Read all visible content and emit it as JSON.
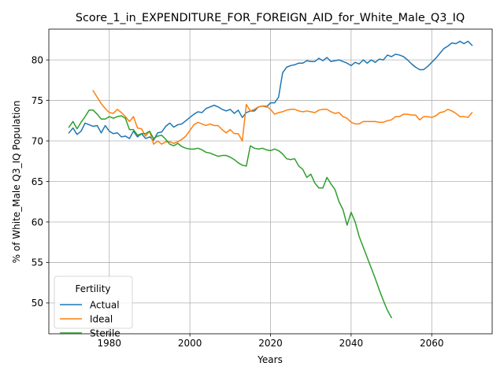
{
  "chart_data": {
    "type": "line",
    "title": "Score_1_in_EXPENDITURE_FOR_FOREIGN_AID_for_White_Male_Q3_IQ",
    "xlabel": "Years",
    "ylabel": "% of White_Male Q3_IQ Population",
    "xlim": [
      1965,
      2075
    ],
    "ylim": [
      46.2,
      83.8
    ],
    "xticks": [
      1980,
      2000,
      2020,
      2040,
      2060
    ],
    "yticks": [
      50,
      55,
      60,
      65,
      70,
      75,
      80
    ],
    "grid": true,
    "legend": {
      "title": "Fertility",
      "position": "lower-left"
    },
    "series": [
      {
        "name": "Actual",
        "color": "#1f77b4",
        "points": [
          [
            1970,
            71.0
          ],
          [
            1971,
            71.6
          ],
          [
            1972,
            70.8
          ],
          [
            1973,
            71.2
          ],
          [
            1974,
            72.2
          ],
          [
            1975,
            72.0
          ],
          [
            1976,
            71.8
          ],
          [
            1977,
            71.9
          ],
          [
            1978,
            71.0
          ],
          [
            1979,
            71.9
          ],
          [
            1980,
            71.2
          ],
          [
            1981,
            70.9
          ],
          [
            1982,
            71.0
          ],
          [
            1983,
            70.5
          ],
          [
            1984,
            70.6
          ],
          [
            1985,
            70.3
          ],
          [
            1986,
            71.2
          ],
          [
            1987,
            70.5
          ],
          [
            1988,
            70.9
          ],
          [
            1989,
            70.3
          ],
          [
            1990,
            70.5
          ],
          [
            1991,
            70.1
          ],
          [
            1992,
            71.0
          ],
          [
            1993,
            71.1
          ],
          [
            1994,
            71.8
          ],
          [
            1995,
            72.2
          ],
          [
            1996,
            71.7
          ],
          [
            1997,
            72.0
          ],
          [
            1998,
            72.1
          ],
          [
            1999,
            72.5
          ],
          [
            2000,
            72.9
          ],
          [
            2001,
            73.3
          ],
          [
            2002,
            73.6
          ],
          [
            2003,
            73.5
          ],
          [
            2004,
            74.0
          ],
          [
            2005,
            74.2
          ],
          [
            2006,
            74.4
          ],
          [
            2007,
            74.2
          ],
          [
            2008,
            73.9
          ],
          [
            2009,
            73.7
          ],
          [
            2010,
            73.9
          ],
          [
            2011,
            73.4
          ],
          [
            2012,
            73.8
          ],
          [
            2013,
            72.9
          ],
          [
            2014,
            73.5
          ],
          [
            2015,
            73.7
          ],
          [
            2016,
            73.7
          ],
          [
            2017,
            74.2
          ],
          [
            2018,
            74.3
          ],
          [
            2019,
            74.2
          ],
          [
            2020,
            74.7
          ],
          [
            2021,
            74.7
          ],
          [
            2022,
            75.4
          ],
          [
            2023,
            78.4
          ],
          [
            2024,
            79.1
          ],
          [
            2025,
            79.3
          ],
          [
            2026,
            79.4
          ],
          [
            2027,
            79.6
          ],
          [
            2028,
            79.6
          ],
          [
            2029,
            79.9
          ],
          [
            2030,
            79.8
          ],
          [
            2031,
            79.8
          ],
          [
            2032,
            80.2
          ],
          [
            2033,
            79.9
          ],
          [
            2034,
            80.3
          ],
          [
            2035,
            79.8
          ],
          [
            2036,
            79.9
          ],
          [
            2037,
            80.0
          ],
          [
            2038,
            79.8
          ],
          [
            2039,
            79.6
          ],
          [
            2040,
            79.3
          ],
          [
            2041,
            79.7
          ],
          [
            2042,
            79.5
          ],
          [
            2043,
            80.0
          ],
          [
            2044,
            79.6
          ],
          [
            2045,
            80.0
          ],
          [
            2046,
            79.7
          ],
          [
            2047,
            80.1
          ],
          [
            2048,
            80.0
          ],
          [
            2049,
            80.6
          ],
          [
            2050,
            80.4
          ],
          [
            2051,
            80.7
          ],
          [
            2052,
            80.6
          ],
          [
            2053,
            80.4
          ],
          [
            2054,
            80.0
          ],
          [
            2055,
            79.5
          ],
          [
            2056,
            79.1
          ],
          [
            2057,
            78.8
          ],
          [
            2058,
            78.8
          ],
          [
            2059,
            79.2
          ],
          [
            2060,
            79.7
          ],
          [
            2061,
            80.2
          ],
          [
            2062,
            80.8
          ],
          [
            2063,
            81.4
          ],
          [
            2064,
            81.7
          ],
          [
            2065,
            82.1
          ],
          [
            2066,
            82.0
          ],
          [
            2067,
            82.3
          ],
          [
            2068,
            82.0
          ],
          [
            2069,
            82.3
          ],
          [
            2070,
            81.8
          ]
        ]
      },
      {
        "name": "Ideal",
        "color": "#ff7f0e",
        "points": [
          [
            1976,
            76.2
          ],
          [
            1977,
            75.4
          ],
          [
            1978,
            74.6
          ],
          [
            1979,
            74.0
          ],
          [
            1980,
            73.5
          ],
          [
            1981,
            73.4
          ],
          [
            1982,
            73.9
          ],
          [
            1983,
            73.5
          ],
          [
            1984,
            73.0
          ],
          [
            1985,
            72.4
          ],
          [
            1986,
            73.0
          ],
          [
            1987,
            71.6
          ],
          [
            1988,
            71.5
          ],
          [
            1989,
            70.6
          ],
          [
            1990,
            71.2
          ],
          [
            1991,
            69.6
          ],
          [
            1992,
            70.0
          ],
          [
            1993,
            69.6
          ],
          [
            1994,
            69.9
          ],
          [
            1995,
            69.9
          ],
          [
            1996,
            69.7
          ],
          [
            1997,
            69.9
          ],
          [
            1998,
            70.2
          ],
          [
            1999,
            70.6
          ],
          [
            2000,
            71.3
          ],
          [
            2001,
            72.0
          ],
          [
            2002,
            72.3
          ],
          [
            2003,
            72.1
          ],
          [
            2004,
            71.9
          ],
          [
            2005,
            72.1
          ],
          [
            2006,
            71.9
          ],
          [
            2007,
            71.9
          ],
          [
            2008,
            71.4
          ],
          [
            2009,
            71.0
          ],
          [
            2010,
            71.4
          ],
          [
            2011,
            70.9
          ],
          [
            2012,
            70.9
          ],
          [
            2013,
            70.0
          ],
          [
            2014,
            74.5
          ],
          [
            2015,
            73.7
          ],
          [
            2016,
            73.9
          ],
          [
            2017,
            74.2
          ],
          [
            2018,
            74.3
          ],
          [
            2019,
            74.3
          ],
          [
            2020,
            73.9
          ],
          [
            2021,
            73.3
          ],
          [
            2022,
            73.5
          ],
          [
            2023,
            73.6
          ],
          [
            2024,
            73.8
          ],
          [
            2025,
            73.9
          ],
          [
            2026,
            73.9
          ],
          [
            2027,
            73.7
          ],
          [
            2028,
            73.6
          ],
          [
            2029,
            73.7
          ],
          [
            2030,
            73.6
          ],
          [
            2031,
            73.5
          ],
          [
            2032,
            73.8
          ],
          [
            2033,
            73.9
          ],
          [
            2034,
            73.9
          ],
          [
            2035,
            73.6
          ],
          [
            2036,
            73.4
          ],
          [
            2037,
            73.5
          ],
          [
            2038,
            73.0
          ],
          [
            2039,
            72.8
          ],
          [
            2040,
            72.3
          ],
          [
            2041,
            72.1
          ],
          [
            2042,
            72.1
          ],
          [
            2043,
            72.4
          ],
          [
            2044,
            72.4
          ],
          [
            2045,
            72.4
          ],
          [
            2046,
            72.4
          ],
          [
            2047,
            72.3
          ],
          [
            2048,
            72.3
          ],
          [
            2049,
            72.5
          ],
          [
            2050,
            72.6
          ],
          [
            2051,
            73.0
          ],
          [
            2052,
            73.0
          ],
          [
            2053,
            73.3
          ],
          [
            2054,
            73.3
          ],
          [
            2055,
            73.2
          ],
          [
            2056,
            73.2
          ],
          [
            2057,
            72.6
          ],
          [
            2058,
            73.0
          ],
          [
            2059,
            73.0
          ],
          [
            2060,
            72.9
          ],
          [
            2061,
            73.1
          ],
          [
            2062,
            73.5
          ],
          [
            2063,
            73.6
          ],
          [
            2064,
            73.9
          ],
          [
            2065,
            73.7
          ],
          [
            2066,
            73.4
          ],
          [
            2067,
            73.0
          ],
          [
            2068,
            73.0
          ],
          [
            2069,
            72.9
          ],
          [
            2070,
            73.5
          ]
        ]
      },
      {
        "name": "Sterile",
        "color": "#2ca02c",
        "points": [
          [
            1970,
            71.7
          ],
          [
            1971,
            72.4
          ],
          [
            1972,
            71.5
          ],
          [
            1973,
            72.3
          ],
          [
            1974,
            73.0
          ],
          [
            1975,
            73.8
          ],
          [
            1976,
            73.8
          ],
          [
            1977,
            73.3
          ],
          [
            1978,
            72.7
          ],
          [
            1979,
            72.7
          ],
          [
            1980,
            73.0
          ],
          [
            1981,
            72.8
          ],
          [
            1982,
            73.0
          ],
          [
            1983,
            73.1
          ],
          [
            1984,
            72.8
          ],
          [
            1985,
            71.4
          ],
          [
            1986,
            71.4
          ],
          [
            1987,
            70.7
          ],
          [
            1988,
            70.9
          ],
          [
            1989,
            70.9
          ],
          [
            1990,
            71.2
          ],
          [
            1991,
            70.3
          ],
          [
            1992,
            70.6
          ],
          [
            1993,
            70.7
          ],
          [
            1994,
            70.2
          ],
          [
            1995,
            69.6
          ],
          [
            1996,
            69.4
          ],
          [
            1997,
            69.7
          ],
          [
            1998,
            69.3
          ],
          [
            1999,
            69.1
          ],
          [
            2000,
            69.0
          ],
          [
            2001,
            69.0
          ],
          [
            2002,
            69.1
          ],
          [
            2003,
            68.9
          ],
          [
            2004,
            68.6
          ],
          [
            2005,
            68.5
          ],
          [
            2006,
            68.3
          ],
          [
            2007,
            68.1
          ],
          [
            2008,
            68.2
          ],
          [
            2009,
            68.2
          ],
          [
            2010,
            68.0
          ],
          [
            2011,
            67.7
          ],
          [
            2012,
            67.3
          ],
          [
            2013,
            67.0
          ],
          [
            2014,
            66.9
          ],
          [
            2015,
            69.4
          ],
          [
            2016,
            69.1
          ],
          [
            2017,
            69.0
          ],
          [
            2018,
            69.1
          ],
          [
            2019,
            68.9
          ],
          [
            2020,
            68.8
          ],
          [
            2021,
            69.0
          ],
          [
            2022,
            68.8
          ],
          [
            2023,
            68.4
          ],
          [
            2024,
            67.8
          ],
          [
            2025,
            67.7
          ],
          [
            2026,
            67.8
          ],
          [
            2027,
            66.9
          ],
          [
            2028,
            66.5
          ],
          [
            2029,
            65.5
          ],
          [
            2030,
            65.9
          ],
          [
            2031,
            64.8
          ],
          [
            2032,
            64.2
          ],
          [
            2033,
            64.2
          ],
          [
            2034,
            65.5
          ],
          [
            2035,
            64.7
          ],
          [
            2036,
            64.0
          ],
          [
            2037,
            62.5
          ],
          [
            2038,
            61.5
          ],
          [
            2039,
            59.6
          ],
          [
            2040,
            61.2
          ],
          [
            2041,
            60.0
          ],
          [
            2042,
            58.2
          ],
          [
            2043,
            56.9
          ],
          [
            2044,
            55.6
          ],
          [
            2045,
            54.3
          ],
          [
            2046,
            53.0
          ],
          [
            2047,
            51.6
          ],
          [
            2048,
            50.3
          ],
          [
            2049,
            49.1
          ],
          [
            2050,
            48.2
          ]
        ]
      }
    ]
  }
}
